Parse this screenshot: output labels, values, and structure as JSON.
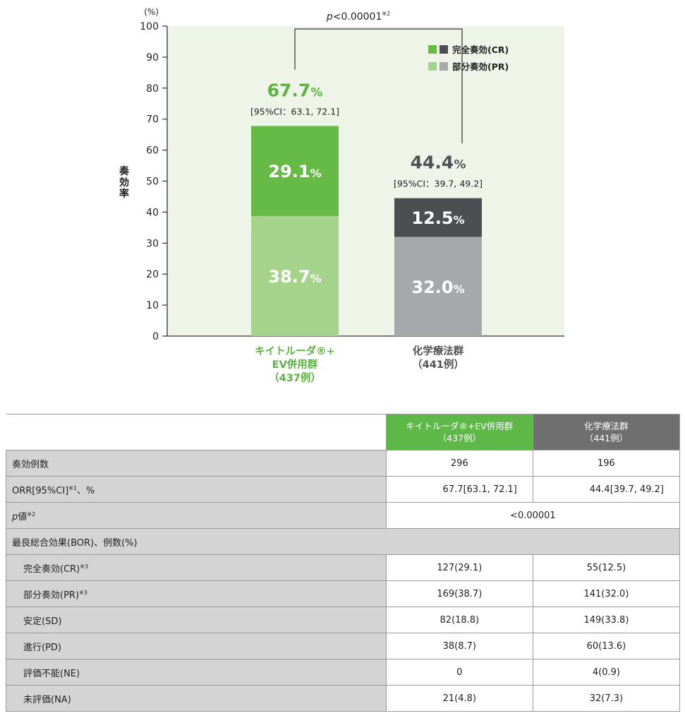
{
  "chart_data": {
    "type": "bar",
    "stacked": true,
    "categories": [
      "キイトルーダ®+\nEV併用群\n(437例)",
      "化学療法群\n(441例)"
    ],
    "category_lines": [
      [
        "キイトルーダ®+",
        "EV併用群",
        "（437例）"
      ],
      [
        "化学療法群",
        "（441例）"
      ]
    ],
    "series": [
      {
        "name": "部分奏効(PR)",
        "values": [
          38.7,
          32.0
        ],
        "colors": [
          "#a6d38b",
          "#a7a8ab"
        ],
        "labels": [
          "38.7",
          "32.0"
        ]
      },
      {
        "name": "完全奏効(CR)",
        "values": [
          29.1,
          12.5
        ],
        "colors": [
          "#66bb47",
          "#4d4e51"
        ],
        "labels": [
          "29.1",
          "12.5"
        ]
      }
    ],
    "totals": [
      {
        "value": 67.7,
        "label": "67.7",
        "ci": "[95%CI：63.1, 72.1]",
        "color": "#5cb33f"
      },
      {
        "value": 44.4,
        "label": "44.4",
        "ci": "[95%CI：39.7, 49.2]",
        "color": "#505155"
      }
    ],
    "percent_unit": "%",
    "ylabel": "奏効率",
    "yunit": "(%)",
    "ylim": [
      0,
      100
    ],
    "yticks": [
      0,
      10,
      20,
      30,
      40,
      50,
      60,
      70,
      80,
      90,
      100
    ],
    "pvalue": {
      "p": "p",
      "text": "<0.00001",
      "mark": "※2"
    },
    "legend": {
      "placement": "top-right",
      "items": [
        {
          "label": "完全奏効(CR)",
          "colors": [
            "#66bb47",
            "#4d4e51"
          ]
        },
        {
          "label": "部分奏効(PR)",
          "colors": [
            "#a6d38b",
            "#a7a8ab"
          ]
        }
      ]
    },
    "background_color": "#eef5e8"
  },
  "table": {
    "header": {
      "a_line1": "キイトルーダ®+EV併用群",
      "a_line2": "（437例）",
      "b_line1": "化学療法群",
      "b_line2": "（441例）"
    },
    "rows": {
      "responders": {
        "label": "奏効例数",
        "a": "296",
        "b": "196"
      },
      "orr": {
        "label": "ORR[95%CI]",
        "sup": "※1",
        "suffix": "、%",
        "a": "67.7[63.1, 72.1]",
        "b": "44.4[39.7, 49.2]"
      },
      "pvalue": {
        "label_p": "p",
        "label_rest": "値",
        "sup": "※2",
        "value": "<0.00001"
      },
      "bor_section": {
        "label": "最良総合効果(BOR)、例数(%)"
      },
      "cr": {
        "label": "完全奏効(CR)",
        "sup": "※3",
        "a": "127(29.1)",
        "b": "55(12.5)"
      },
      "pr": {
        "label": "部分奏効(PR)",
        "sup": "※3",
        "a": "169(38.7)",
        "b": "141(32.0)"
      },
      "sd": {
        "label": "安定(SD)",
        "a": "82(18.8)",
        "b": "149(33.8)"
      },
      "pd": {
        "label": "進行(PD)",
        "a": "38(8.7)",
        "b": "60(13.6)"
      },
      "ne": {
        "label": "評価不能(NE)",
        "a": "0",
        "b": "4(0.9)"
      },
      "na": {
        "label": "未評価(NA)",
        "a": "21(4.8)",
        "b": "32(7.3)"
      }
    }
  }
}
